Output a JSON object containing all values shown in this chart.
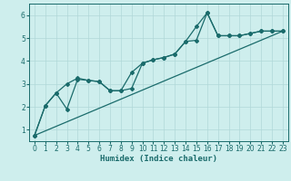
{
  "xlabel": "Humidex (Indice chaleur)",
  "bg_color": "#ceeeed",
  "line_color": "#1a6b6b",
  "grid_color": "#b0d8d8",
  "xlim": [
    -0.5,
    23.5
  ],
  "ylim": [
    0.5,
    6.5
  ],
  "yticks": [
    1,
    2,
    3,
    4,
    5,
    6
  ],
  "xticks": [
    0,
    1,
    2,
    3,
    4,
    5,
    6,
    7,
    8,
    9,
    10,
    11,
    12,
    13,
    14,
    15,
    16,
    17,
    18,
    19,
    20,
    21,
    22,
    23
  ],
  "line1_x": [
    0,
    1,
    2,
    3,
    4,
    5,
    6,
    7,
    8,
    9,
    10,
    11,
    12,
    13,
    14,
    15,
    16,
    17,
    18,
    19,
    20,
    21,
    22,
    23
  ],
  "line1_y": [
    0.75,
    2.05,
    2.6,
    1.9,
    3.2,
    3.15,
    3.1,
    2.7,
    2.7,
    2.8,
    3.9,
    4.05,
    4.15,
    4.3,
    4.85,
    4.9,
    6.1,
    5.1,
    5.1,
    5.1,
    5.2,
    5.3,
    5.3,
    5.3
  ],
  "line2_x": [
    0,
    1,
    2,
    3,
    4,
    5,
    6,
    7,
    8,
    9,
    10,
    11,
    12,
    13,
    14,
    15,
    16,
    17,
    18,
    19,
    20,
    21,
    22,
    23
  ],
  "line2_y": [
    0.75,
    2.05,
    2.6,
    3.0,
    3.25,
    3.15,
    3.1,
    2.7,
    2.7,
    3.5,
    3.9,
    4.05,
    4.15,
    4.3,
    4.85,
    5.5,
    6.1,
    5.1,
    5.1,
    5.1,
    5.2,
    5.3,
    5.3,
    5.3
  ],
  "line3_x": [
    0,
    23
  ],
  "line3_y": [
    0.75,
    5.3
  ]
}
